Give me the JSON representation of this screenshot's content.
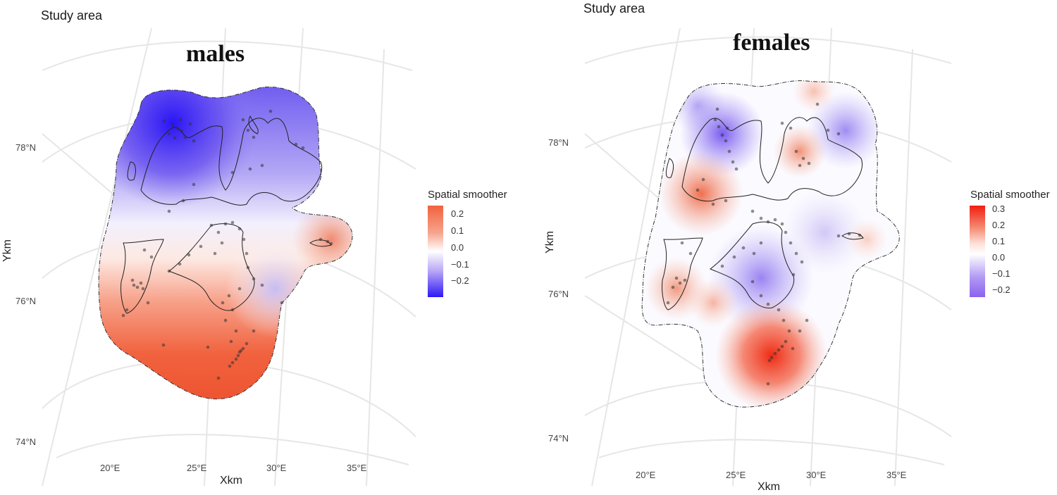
{
  "panels": [
    {
      "study_label": "Study area",
      "title": "males",
      "lat_labels": [
        "78°N",
        "76°N",
        "74°N"
      ],
      "lon_labels": [
        "20°E",
        "25°E",
        "30°E",
        "35°E"
      ],
      "xlabel": "Xkm",
      "ylabel": "Ykm",
      "legend": {
        "title": "Spatial smoother",
        "ticks": [
          "0.2",
          "0.1",
          "0.0",
          "−0.1",
          "−0.2"
        ],
        "colors": [
          "#f1613d",
          "#f6a58e",
          "#ffffff",
          "#b6a4f6",
          "#2f18f5"
        ]
      }
    },
    {
      "study_label": "Study area",
      "title": "females",
      "lat_labels": [
        "78°N",
        "76°N",
        "74°N"
      ],
      "lon_labels": [
        "20°E",
        "25°E",
        "30°E",
        "35°E"
      ],
      "xlabel": "Xkm",
      "ylabel": "Ykm",
      "legend": {
        "title": "Spatial smoother",
        "ticks": [
          "0.3",
          "0.2",
          "0.1",
          "0.0",
          "−0.1",
          "−0.2"
        ],
        "colors": [
          "#f01e10",
          "#f58e76",
          "#ffffff",
          "#b29af4",
          "#8a62ee"
        ]
      }
    }
  ]
}
